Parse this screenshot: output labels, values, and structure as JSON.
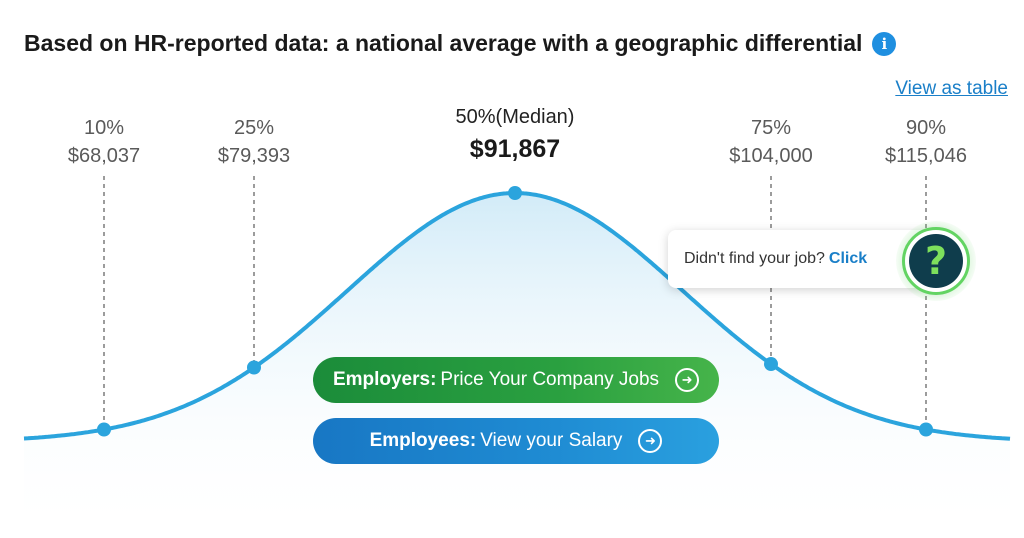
{
  "header": {
    "title": "Based on HR-reported data: a national average with a geographic differential",
    "info_icon": "info-icon",
    "view_table_link": "View as table"
  },
  "chart_data": {
    "type": "area",
    "title": "Based on HR-reported data: a national average with a geographic differential",
    "percentiles": [
      {
        "label": "10%",
        "value": 68037,
        "display": "$68,037"
      },
      {
        "label": "25%",
        "value": 79393,
        "display": "$79,393"
      },
      {
        "label": "50%(Median)",
        "value": 91867,
        "display": "$91,867"
      },
      {
        "label": "75%",
        "value": 104000,
        "display": "$104,000"
      },
      {
        "label": "90%",
        "value": 115046,
        "display": "$115,046"
      }
    ],
    "distribution": "normal",
    "color": "#2ba4dd"
  },
  "buttons": {
    "employers_bold": "Employers:",
    "employers_text": "Price Your Company Jobs",
    "employees_bold": "Employees:",
    "employees_text": "View your Salary",
    "arrow_icon": "arrow-right-circle-icon"
  },
  "help": {
    "prompt": "Didn't find your job?",
    "click": "Click",
    "icon": "question-icon",
    "icon_glyph": "?"
  },
  "colors": {
    "curve": "#2ba4dd",
    "employers": "#1b8c3a",
    "employees": "#1877c4",
    "link": "#1a7fc8"
  }
}
